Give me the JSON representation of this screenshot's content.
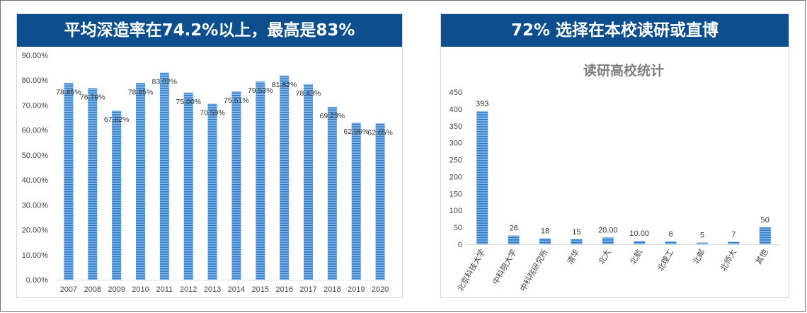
{
  "colors": {
    "banner_bg": "#0d4f8e",
    "bar_light": "#8fc0ec",
    "bar_dark": "#2a77c9",
    "axis_text": "#444444",
    "gridline": "#d9d9d9",
    "title_gray": "#7f7f7f"
  },
  "left_panel": {
    "banner_title": "平均深造率在74.2%以上，最高是83%"
  },
  "right_panel": {
    "banner_title": "72% 选择在本校读研或直博"
  },
  "chart_data": [
    {
      "type": "bar",
      "title": "",
      "xlabel": "",
      "ylabel": "",
      "categories": [
        "2007",
        "2008",
        "2009",
        "2010",
        "2011",
        "2012",
        "2013",
        "2014",
        "2015",
        "2016",
        "2017",
        "2018",
        "2019",
        "2020"
      ],
      "values": [
        78.85,
        76.79,
        67.82,
        78.85,
        83.02,
        75.0,
        70.59,
        75.51,
        79.53,
        81.82,
        78.43,
        69.23,
        62.96,
        62.65
      ],
      "data_labels": [
        "78.85%",
        "76.79%",
        "67.82%",
        "78.85%",
        "83.02%",
        "75.00%",
        "70.59%",
        "75.51%",
        "79.53%",
        "81.82%",
        "78.43%",
        "69.23%",
        "62.96%",
        "62.65%"
      ],
      "ylim": [
        0,
        90
      ],
      "ytick_values": [
        0,
        10,
        20,
        30,
        40,
        50,
        60,
        70,
        80,
        90
      ],
      "ytick_labels": [
        "0.00%",
        "10.00%",
        "20.00%",
        "30.00%",
        "40.00%",
        "50.00%",
        "60.00%",
        "70.00%",
        "80.00%",
        "90.00%"
      ],
      "grid": false
    },
    {
      "type": "bar",
      "title": "读研高校统计",
      "xlabel": "",
      "ylabel": "",
      "categories": [
        "北京科技大学",
        "中科院大学",
        "中科院研究所",
        "清华",
        "北大",
        "北航",
        "北理工",
        "北邮",
        "北师大",
        "其他"
      ],
      "values": [
        393,
        26,
        18,
        15,
        20,
        10,
        8,
        5,
        7,
        50
      ],
      "data_labels": [
        "393",
        "26",
        "18",
        "15",
        "20.00",
        "10.00",
        "8",
        "5",
        "7",
        "50"
      ],
      "ylim": [
        0,
        450
      ],
      "ytick_values": [
        0,
        50,
        100,
        150,
        200,
        250,
        300,
        350,
        400,
        450
      ],
      "ytick_labels": [
        "0",
        "50",
        "100",
        "150",
        "200",
        "250",
        "300",
        "350",
        "400",
        "450"
      ],
      "grid": false
    }
  ]
}
